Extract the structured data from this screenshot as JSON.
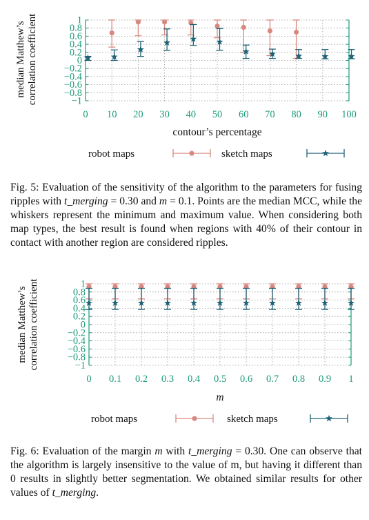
{
  "chart_data": [
    {
      "type": "errorbar",
      "xlabel": "contour’s percentage",
      "ylabel_line1": "median Matthew’s",
      "ylabel_line2": "correlation coefficient",
      "xlim": [
        0,
        100
      ],
      "ylim": [
        -1,
        1
      ],
      "x_ticks": [
        "0",
        "10",
        "20",
        "30",
        "40",
        "50",
        "60",
        "70",
        "80",
        "90",
        "100"
      ],
      "y_ticks": [
        "1",
        "0.8",
        "0.6",
        "0.4",
        "0.2",
        "0",
        "−0.2",
        "−0.4",
        "−0.6",
        "−0.8",
        "−1"
      ],
      "grid": true,
      "legend_position": "bottom",
      "series": [
        {
          "name": "robot maps",
          "color": "#d98880",
          "marker": "circle",
          "x": [
            10,
            20,
            30,
            40,
            50,
            60,
            70,
            80
          ],
          "median": [
            0.68,
            0.95,
            0.95,
            0.93,
            0.85,
            0.82,
            0.73,
            0.7
          ],
          "min": [
            0.33,
            0.61,
            0.63,
            0.63,
            0.56,
            0.2,
            0.12,
            0.05
          ],
          "max": [
            1,
            1,
            1,
            1,
            1,
            1,
            1,
            1
          ]
        },
        {
          "name": "sketch maps",
          "color": "#1e6277",
          "marker": "star",
          "x": [
            0,
            10,
            20,
            30,
            40,
            50,
            60,
            70,
            80,
            90,
            100
          ],
          "median": [
            0.06,
            0.09,
            0.27,
            0.44,
            0.53,
            0.46,
            0.22,
            0.16,
            0.11,
            0.1,
            0.1
          ],
          "min": [
            0.0,
            0.0,
            0.1,
            0.25,
            0.37,
            0.25,
            0.05,
            0.05,
            0.05,
            0.04,
            0.04
          ],
          "max": [
            0.1,
            0.26,
            0.47,
            0.78,
            0.89,
            0.79,
            0.38,
            0.28,
            0.27,
            0.27,
            0.27
          ]
        }
      ]
    },
    {
      "type": "errorbar",
      "xlabel": "m",
      "ylabel_line1": "median Matthew’s",
      "ylabel_line2": "correlation coefficient",
      "xlim": [
        0,
        1
      ],
      "ylim": [
        -1,
        1
      ],
      "x_ticks": [
        "0",
        "0.1",
        "0.2",
        "0.3",
        "0.4",
        "0.5",
        "0.6",
        "0.7",
        "0.8",
        "0.9",
        "1"
      ],
      "y_ticks": [
        "1",
        "0.8",
        "0.6",
        "0.4",
        "0.2",
        "0",
        "−0.2",
        "−0.4",
        "−0.6",
        "−0.8",
        "−1"
      ],
      "grid": true,
      "legend_position": "bottom",
      "series": [
        {
          "name": "robot maps",
          "color": "#d98880",
          "marker": "circle",
          "x": [
            0,
            0.1,
            0.2,
            0.3,
            0.4,
            0.5,
            0.6,
            0.7,
            0.8,
            0.9,
            1
          ],
          "median": [
            0.93,
            0.93,
            0.93,
            0.93,
            0.93,
            0.93,
            0.93,
            0.93,
            0.93,
            0.93,
            0.93
          ],
          "min": [
            0.63,
            0.63,
            0.63,
            0.63,
            0.63,
            0.63,
            0.63,
            0.63,
            0.63,
            0.63,
            0.63
          ],
          "max": [
            1,
            1,
            1,
            1,
            1,
            1,
            1,
            1,
            1,
            1,
            1
          ]
        },
        {
          "name": "sketch maps",
          "color": "#1e6277",
          "marker": "star",
          "x": [
            0,
            0.1,
            0.2,
            0.3,
            0.4,
            0.5,
            0.6,
            0.7,
            0.8,
            0.9,
            1
          ],
          "median": [
            0.53,
            0.53,
            0.53,
            0.53,
            0.53,
            0.53,
            0.53,
            0.53,
            0.53,
            0.53,
            0.53
          ],
          "min": [
            0.37,
            0.37,
            0.37,
            0.37,
            0.37,
            0.37,
            0.37,
            0.37,
            0.37,
            0.37,
            0.37
          ],
          "max": [
            0.89,
            0.89,
            0.89,
            0.89,
            0.89,
            0.89,
            0.89,
            0.89,
            0.89,
            0.89,
            0.89
          ]
        }
      ]
    }
  ],
  "captions": {
    "fig5": {
      "label": "Fig. 5:",
      "text_a": " Evaluation of the sensitivity of the algorithm to the parameters for fusing ripples with ",
      "math_a": "t_merging",
      "text_b": " = 0.30 and ",
      "math_b": "m",
      "text_c": " = 0.1. Points are the median MCC, while the whiskers represent the minimum and maximum value. When considering both map types, the best result is found when regions with 40% of their contour in contact with another region are considered ripples."
    },
    "fig6": {
      "label": "Fig. 6:",
      "text_a": " Evaluation of the margin ",
      "math_a": "m",
      "text_b": " with ",
      "math_b": "t_merging",
      "text_c": " = 0.30. One can observe that the algorithm is largely insensitive to the value of m, but having it different than 0 results in slightly better segmentation. We obtained similar results for other values of ",
      "math_c": "t_merging",
      "text_d": "."
    }
  }
}
